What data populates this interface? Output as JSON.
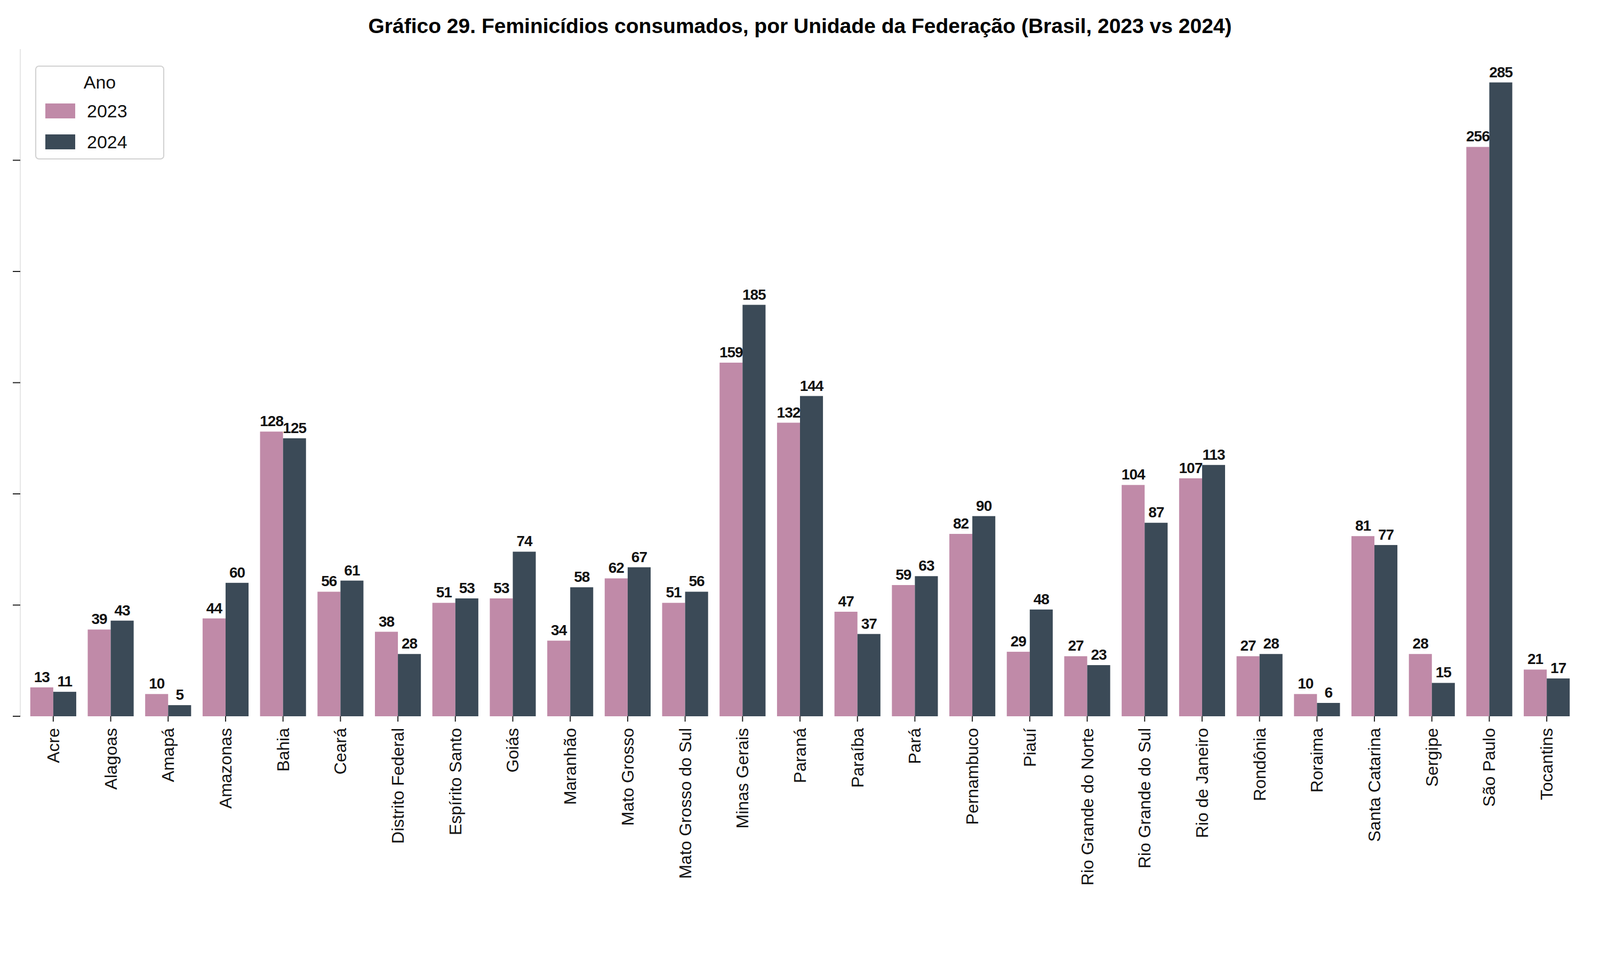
{
  "chart_data": {
    "type": "bar",
    "title": "Gráfico 29. Feminicídios consumados, por Unidade da Federação (Brasil, 2023 vs 2024)",
    "legend_title": "Ano",
    "categories": [
      "Acre",
      "Alagoas",
      "Amapá",
      "Amazonas",
      "Bahia",
      "Ceará",
      "Distrito Federal",
      "Espírito Santo",
      "Goiás",
      "Maranhão",
      "Mato Grosso",
      "Mato Grosso do Sul",
      "Minas Gerais",
      "Paraná",
      "Paraíba",
      "Pará",
      "Pernambuco",
      "Piauí",
      "Rio Grande do Norte",
      "Rio Grande do Sul",
      "Rio de Janeiro",
      "Rondônia",
      "Roraima",
      "Santa Catarina",
      "Sergipe",
      "São Paulo",
      "Tocantins"
    ],
    "series": [
      {
        "name": "2023",
        "color": "#c08aa8",
        "values": [
          13,
          39,
          10,
          44,
          128,
          56,
          38,
          51,
          53,
          34,
          62,
          51,
          159,
          132,
          47,
          59,
          82,
          29,
          27,
          104,
          107,
          27,
          10,
          81,
          28,
          256,
          21
        ]
      },
      {
        "name": "2024",
        "color": "#3b4a57",
        "values": [
          11,
          43,
          5,
          60,
          125,
          61,
          28,
          53,
          74,
          58,
          67,
          56,
          185,
          144,
          37,
          63,
          90,
          48,
          23,
          87,
          113,
          28,
          6,
          77,
          15,
          285,
          17
        ]
      }
    ],
    "ylim": [
      0,
      300
    ],
    "yticks": [
      0,
      50,
      100,
      150,
      200,
      250
    ],
    "grid": false,
    "legend": "upper left",
    "data_labels": true,
    "tick_labels": "x"
  }
}
